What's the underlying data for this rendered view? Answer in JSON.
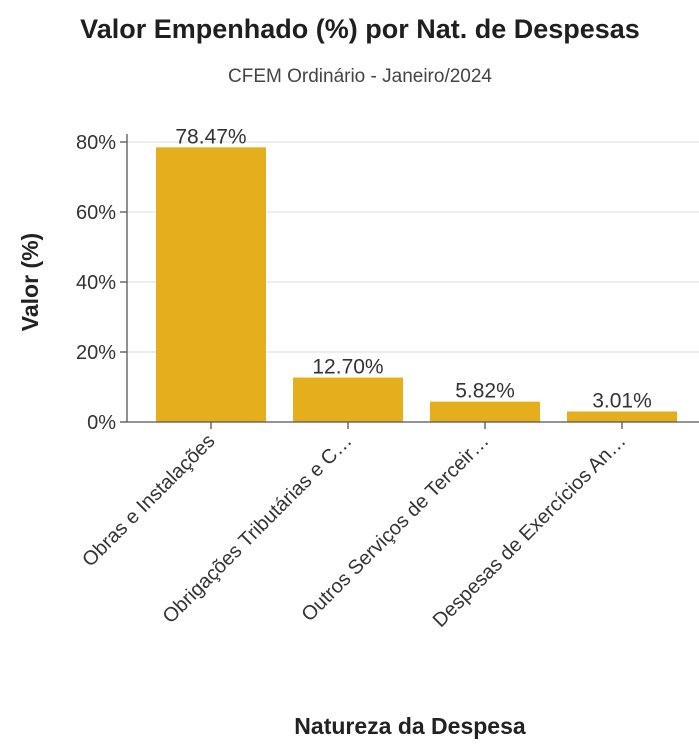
{
  "colors": {
    "bar": "#e5ae1c",
    "grid": "#dedede",
    "axis": "#555555"
  },
  "chart_data": {
    "type": "bar",
    "title": "Valor Empenhado (%) por Nat. de Despesas",
    "subtitle": "CFEM Ordinário - Janeiro/2024",
    "xlabel": "Natureza da Despesa",
    "ylabel": "Valor (%)",
    "categories": [
      "Obras e Instalações",
      "Obrigações Tributárias e C…",
      "Outros Serviços de Terceir…",
      "Despesas de Exercícios An…"
    ],
    "values": [
      78.47,
      12.7,
      5.82,
      3.01
    ],
    "data_labels": [
      "78.47%",
      "12.70%",
      "5.82%",
      "3.01%"
    ],
    "ylim": [
      0,
      80
    ],
    "yticks": [
      0,
      20,
      40,
      60,
      80
    ],
    "ytick_labels": [
      "0%",
      "20%",
      "40%",
      "60%",
      "80%"
    ],
    "grid": true,
    "legend": "none"
  }
}
